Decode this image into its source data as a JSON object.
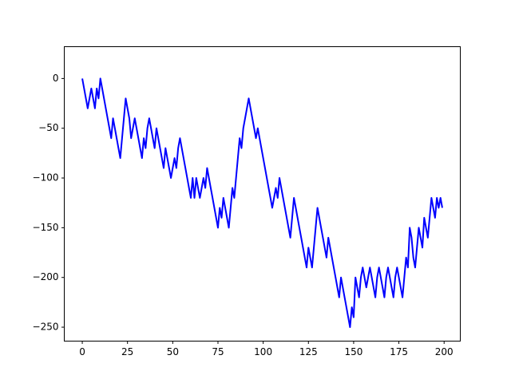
{
  "chart_data": {
    "type": "line",
    "x": [
      0,
      1,
      2,
      3,
      4,
      5,
      6,
      7,
      8,
      9,
      10,
      11,
      12,
      13,
      14,
      15,
      16,
      17,
      18,
      19,
      20,
      21,
      22,
      23,
      24,
      25,
      26,
      27,
      28,
      29,
      30,
      31,
      32,
      33,
      34,
      35,
      36,
      37,
      38,
      39,
      40,
      41,
      42,
      43,
      44,
      45,
      46,
      47,
      48,
      49,
      50,
      51,
      52,
      53,
      54,
      55,
      56,
      57,
      58,
      59,
      60,
      61,
      62,
      63,
      64,
      65,
      66,
      67,
      68,
      69,
      70,
      71,
      72,
      73,
      74,
      75,
      76,
      77,
      78,
      79,
      80,
      81,
      82,
      83,
      84,
      85,
      86,
      87,
      88,
      89,
      90,
      91,
      92,
      93,
      94,
      95,
      96,
      97,
      98,
      99,
      100,
      101,
      102,
      103,
      104,
      105,
      106,
      107,
      108,
      109,
      110,
      111,
      112,
      113,
      114,
      115,
      116,
      117,
      118,
      119,
      120,
      121,
      122,
      123,
      124,
      125,
      126,
      127,
      128,
      129,
      130,
      131,
      132,
      133,
      134,
      135,
      136,
      137,
      138,
      139,
      140,
      141,
      142,
      143,
      144,
      145,
      146,
      147,
      148,
      149,
      150,
      151,
      152,
      153,
      154,
      155,
      156,
      157,
      158,
      159,
      160,
      161,
      162,
      163,
      164,
      165,
      166,
      167,
      168,
      169,
      170,
      171,
      172,
      173,
      174,
      175,
      176,
      177,
      178,
      179,
      180,
      181,
      182,
      183,
      184,
      185,
      186,
      187,
      188,
      189,
      190,
      191,
      192,
      193,
      194,
      195,
      196,
      197,
      198,
      199
    ],
    "series": [
      {
        "color": "#0000ff",
        "values": [
          0,
          -10,
          -20,
          -30,
          -20,
          -10,
          -20,
          -30,
          -10,
          -20,
          0,
          -10,
          -20,
          -30,
          -40,
          -50,
          -60,
          -40,
          -50,
          -60,
          -70,
          -80,
          -60,
          -40,
          -20,
          -30,
          -40,
          -60,
          -50,
          -40,
          -50,
          -60,
          -70,
          -80,
          -60,
          -70,
          -50,
          -40,
          -50,
          -60,
          -70,
          -50,
          -60,
          -70,
          -80,
          -90,
          -70,
          -80,
          -90,
          -100,
          -90,
          -80,
          -90,
          -70,
          -60,
          -70,
          -80,
          -90,
          -100,
          -110,
          -120,
          -100,
          -120,
          -100,
          -110,
          -120,
          -110,
          -100,
          -110,
          -90,
          -100,
          -110,
          -120,
          -130,
          -140,
          -150,
          -130,
          -140,
          -120,
          -130,
          -140,
          -150,
          -130,
          -110,
          -120,
          -100,
          -80,
          -60,
          -70,
          -50,
          -40,
          -30,
          -20,
          -30,
          -40,
          -50,
          -60,
          -50,
          -60,
          -70,
          -80,
          -90,
          -100,
          -110,
          -120,
          -130,
          -120,
          -110,
          -120,
          -100,
          -110,
          -120,
          -130,
          -140,
          -150,
          -160,
          -140,
          -120,
          -130,
          -140,
          -150,
          -160,
          -170,
          -180,
          -190,
          -170,
          -180,
          -190,
          -170,
          -150,
          -130,
          -140,
          -150,
          -160,
          -170,
          -180,
          -160,
          -170,
          -180,
          -190,
          -200,
          -210,
          -220,
          -200,
          -210,
          -220,
          -230,
          -240,
          -250,
          -230,
          -240,
          -200,
          -210,
          -220,
          -200,
          -190,
          -200,
          -210,
          -200,
          -190,
          -200,
          -210,
          -220,
          -200,
          -190,
          -200,
          -210,
          -220,
          -200,
          -190,
          -200,
          -210,
          -220,
          -200,
          -190,
          -200,
          -210,
          -220,
          -200,
          -180,
          -190,
          -150,
          -160,
          -180,
          -190,
          -170,
          -150,
          -160,
          -170,
          -140,
          -150,
          -160,
          -140,
          -120,
          -130,
          -140,
          -120,
          -130,
          -120,
          -130
        ]
      }
    ],
    "xlim": [
      -9.95,
      208.95
    ],
    "xticks": [
      0,
      25,
      50,
      75,
      100,
      125,
      150,
      175,
      200
    ],
    "ylim": [
      -264,
      32
    ],
    "yticks": [
      {
        "value": -250,
        "label": "−250"
      },
      {
        "value": -200,
        "label": "−200"
      },
      {
        "value": -150,
        "label": "−150"
      },
      {
        "value": -100,
        "label": "−100"
      },
      {
        "value": -50,
        "label": "−50"
      },
      0
    ]
  }
}
